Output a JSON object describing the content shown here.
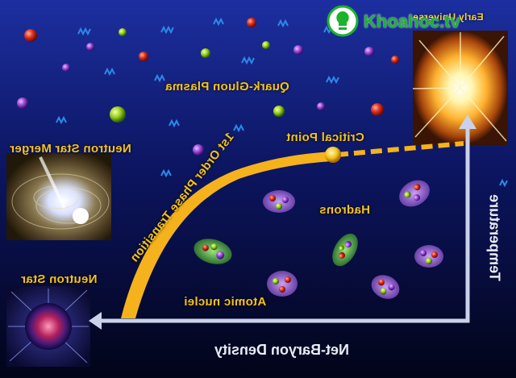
{
  "labels": {
    "early_universe": "Early Universe",
    "quark_gluon_plasma": "Quark-Gluon Plasma",
    "critical_point": "Critical Point",
    "neutron_star_merger": "Neutron Star Merger",
    "first_order_transition": "1st Order Phase Transition",
    "first_order_superscript": "st",
    "hadrons": "Hadrons",
    "atomic_nuclei": "Atomic nuclei",
    "neutron_star": "Neutron Star"
  },
  "axes": {
    "x_label": "Net-Baryon Density",
    "y_label": "Temperature"
  },
  "watermark": {
    "text": "Khoahoc.tv"
  },
  "colors": {
    "background_top": "#1c2fa0",
    "background_bottom": "#020418",
    "phase_line": "#f5b21c",
    "label_text": "#f4c21a",
    "axis_arrow": "#c9d2ea",
    "watermark": "#1bb32c"
  },
  "image_orientation": "horizontally mirrored"
}
